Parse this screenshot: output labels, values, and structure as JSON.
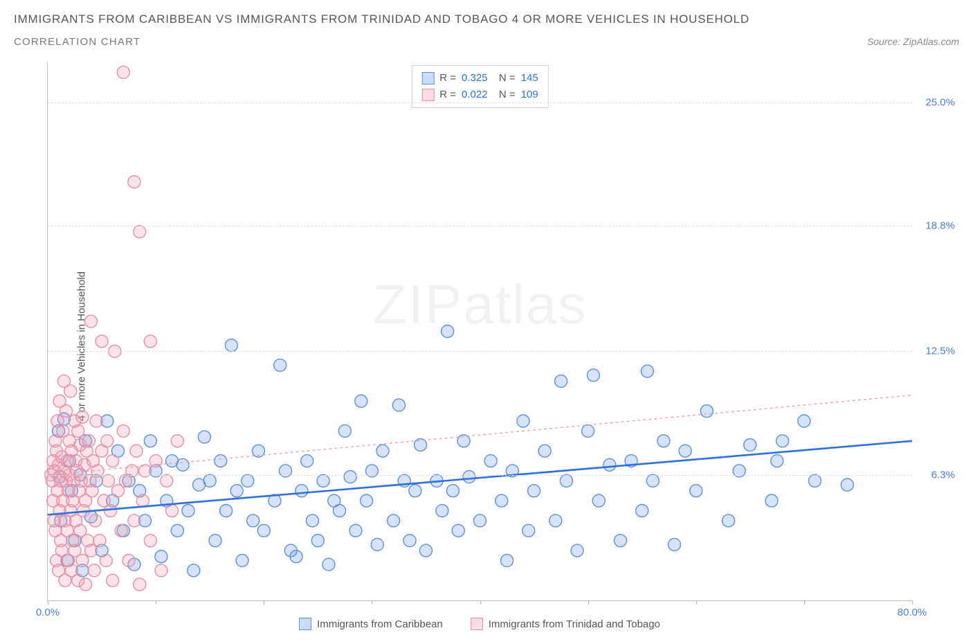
{
  "header": {
    "title": "IMMIGRANTS FROM CARIBBEAN VS IMMIGRANTS FROM TRINIDAD AND TOBAGO 4 OR MORE VEHICLES IN HOUSEHOLD",
    "subtitle": "CORRELATION CHART",
    "source": "Source: ZipAtlas.com"
  },
  "chart": {
    "type": "scatter",
    "ylabel": "4 or more Vehicles in Household",
    "xlim": [
      0,
      80
    ],
    "ylim": [
      0,
      27
    ],
    "xticks": [
      0,
      10,
      20,
      30,
      40,
      50,
      60,
      70,
      80
    ],
    "xlabels_shown": {
      "0": "0.0%",
      "80": "80.0%"
    },
    "yticks": [
      6.3,
      12.5,
      18.8,
      25.0
    ],
    "background_color": "#ffffff",
    "grid_color": "#dddddd",
    "axis_color": "#bbbbbb",
    "tick_label_color": "#4a7fd8",
    "marker_radius": 9,
    "marker_stroke_width": 1.4,
    "marker_fill_opacity": 0.28,
    "watermark": "ZIPatlas",
    "series": [
      {
        "name": "Immigrants from Caribbean",
        "color_fill": "#639cea",
        "color_stroke": "#5a8fd6",
        "R": "0.325",
        "N": "145",
        "trend": {
          "y_at_x0": 4.3,
          "y_at_x80": 8.0,
          "dash": "none",
          "width": 2.6,
          "color": "#2b6fe0"
        },
        "points": [
          [
            1,
            8.5
          ],
          [
            1.1,
            6.2
          ],
          [
            1.2,
            4.0
          ],
          [
            1.5,
            9.1
          ],
          [
            1.8,
            2.0
          ],
          [
            2,
            7.0
          ],
          [
            2.2,
            5.5
          ],
          [
            2.5,
            3.0
          ],
          [
            3,
            6.3
          ],
          [
            3.2,
            1.5
          ],
          [
            3.5,
            8.0
          ],
          [
            4,
            4.2
          ],
          [
            4.5,
            6.0
          ],
          [
            5,
            2.5
          ],
          [
            5.5,
            9.0
          ],
          [
            6,
            5.0
          ],
          [
            6.5,
            7.5
          ],
          [
            7,
            3.5
          ],
          [
            7.5,
            6.0
          ],
          [
            8,
            1.8
          ],
          [
            8.5,
            5.5
          ],
          [
            9,
            4.0
          ],
          [
            9.5,
            8.0
          ],
          [
            10,
            6.5
          ],
          [
            10.5,
            2.2
          ],
          [
            11,
            5.0
          ],
          [
            11.5,
            7.0
          ],
          [
            12,
            3.5
          ],
          [
            12.5,
            6.8
          ],
          [
            13,
            4.5
          ],
          [
            13.5,
            1.5
          ],
          [
            14,
            5.8
          ],
          [
            14.5,
            8.2
          ],
          [
            15,
            6.0
          ],
          [
            15.5,
            3.0
          ],
          [
            16,
            7.0
          ],
          [
            16.5,
            4.5
          ],
          [
            17,
            12.8
          ],
          [
            17.5,
            5.5
          ],
          [
            18,
            2.0
          ],
          [
            18.5,
            6.0
          ],
          [
            19,
            4.0
          ],
          [
            19.5,
            7.5
          ],
          [
            20,
            3.5
          ],
          [
            21,
            5.0
          ],
          [
            21.5,
            11.8
          ],
          [
            22,
            6.5
          ],
          [
            22.5,
            2.5
          ],
          [
            23,
            2.2
          ],
          [
            23.5,
            5.5
          ],
          [
            24,
            7.0
          ],
          [
            24.5,
            4.0
          ],
          [
            25,
            3.0
          ],
          [
            25.5,
            6.0
          ],
          [
            26,
            1.8
          ],
          [
            26.5,
            5.0
          ],
          [
            27,
            4.5
          ],
          [
            27.5,
            8.5
          ],
          [
            28,
            6.2
          ],
          [
            28.5,
            3.5
          ],
          [
            29,
            10.0
          ],
          [
            29.5,
            5.0
          ],
          [
            30,
            6.5
          ],
          [
            30.5,
            2.8
          ],
          [
            31,
            7.5
          ],
          [
            32,
            4.0
          ],
          [
            32.5,
            9.8
          ],
          [
            33,
            6.0
          ],
          [
            33.5,
            3.0
          ],
          [
            34,
            5.5
          ],
          [
            34.5,
            7.8
          ],
          [
            35,
            2.5
          ],
          [
            36,
            6.0
          ],
          [
            36.5,
            4.5
          ],
          [
            37,
            13.5
          ],
          [
            37.5,
            5.5
          ],
          [
            38,
            3.5
          ],
          [
            38.5,
            8.0
          ],
          [
            39,
            6.2
          ],
          [
            40,
            4.0
          ],
          [
            41,
            7.0
          ],
          [
            42,
            5.0
          ],
          [
            42.5,
            2.0
          ],
          [
            43,
            6.5
          ],
          [
            44,
            9.0
          ],
          [
            44.5,
            3.5
          ],
          [
            45,
            5.5
          ],
          [
            46,
            7.5
          ],
          [
            47,
            4.0
          ],
          [
            47.5,
            11.0
          ],
          [
            48,
            6.0
          ],
          [
            49,
            2.5
          ],
          [
            50,
            8.5
          ],
          [
            50.5,
            11.3
          ],
          [
            51,
            5.0
          ],
          [
            52,
            6.8
          ],
          [
            53,
            3.0
          ],
          [
            54,
            7.0
          ],
          [
            55,
            4.5
          ],
          [
            55.5,
            11.5
          ],
          [
            56,
            6.0
          ],
          [
            57,
            8.0
          ],
          [
            58,
            2.8
          ],
          [
            59,
            7.5
          ],
          [
            60,
            5.5
          ],
          [
            61,
            9.5
          ],
          [
            63,
            4.0
          ],
          [
            64,
            6.5
          ],
          [
            65,
            7.8
          ],
          [
            67,
            5.0
          ],
          [
            67.5,
            7.0
          ],
          [
            68,
            8.0
          ],
          [
            70,
            9.0
          ],
          [
            71,
            6.0
          ],
          [
            74,
            5.8
          ]
        ]
      },
      {
        "name": "Immigrants from Trinidad and Tobago",
        "color_fill": "#f49aaf",
        "color_stroke": "#e38fa5",
        "R": "0.022",
        "N": "109",
        "trend": {
          "y_at_x0": 6.3,
          "y_at_x80": 10.3,
          "dash": "4,4",
          "width": 1.3,
          "color": "#e89cae"
        },
        "points": [
          [
            0.3,
            6.3
          ],
          [
            0.4,
            6.0
          ],
          [
            0.5,
            7.0
          ],
          [
            0.5,
            5.0
          ],
          [
            0.6,
            6.5
          ],
          [
            0.6,
            4.0
          ],
          [
            0.7,
            8.0
          ],
          [
            0.7,
            3.5
          ],
          [
            0.8,
            7.5
          ],
          [
            0.8,
            2.0
          ],
          [
            0.9,
            9.0
          ],
          [
            0.9,
            5.5
          ],
          [
            1.0,
            6.8
          ],
          [
            1.0,
            1.5
          ],
          [
            1.1,
            4.5
          ],
          [
            1.1,
            10.0
          ],
          [
            1.2,
            6.0
          ],
          [
            1.2,
            3.0
          ],
          [
            1.3,
            7.2
          ],
          [
            1.3,
            2.5
          ],
          [
            1.4,
            8.5
          ],
          [
            1.4,
            5.0
          ],
          [
            1.5,
            6.5
          ],
          [
            1.5,
            11.0
          ],
          [
            1.6,
            1.0
          ],
          [
            1.6,
            4.0
          ],
          [
            1.7,
            9.5
          ],
          [
            1.7,
            6.0
          ],
          [
            1.8,
            3.5
          ],
          [
            1.8,
            7.0
          ],
          [
            1.9,
            5.5
          ],
          [
            1.9,
            2.0
          ],
          [
            2.0,
            8.0
          ],
          [
            2.0,
            6.3
          ],
          [
            2.1,
            4.5
          ],
          [
            2.1,
            10.5
          ],
          [
            2.2,
            1.5
          ],
          [
            2.2,
            7.5
          ],
          [
            2.3,
            5.0
          ],
          [
            2.3,
            3.0
          ],
          [
            2.4,
            6.0
          ],
          [
            2.5,
            9.0
          ],
          [
            2.5,
            2.5
          ],
          [
            2.6,
            7.0
          ],
          [
            2.6,
            4.0
          ],
          [
            2.7,
            6.5
          ],
          [
            2.8,
            1.0
          ],
          [
            2.8,
            8.5
          ],
          [
            2.9,
            5.5
          ],
          [
            3.0,
            3.5
          ],
          [
            3.0,
            7.8
          ],
          [
            3.1,
            6.0
          ],
          [
            3.2,
            2.0
          ],
          [
            3.2,
            9.2
          ],
          [
            3.3,
            4.5
          ],
          [
            3.4,
            6.8
          ],
          [
            3.5,
            0.8
          ],
          [
            3.5,
            5.0
          ],
          [
            3.6,
            7.5
          ],
          [
            3.7,
            3.0
          ],
          [
            3.8,
            8.0
          ],
          [
            3.9,
            6.0
          ],
          [
            4.0,
            2.5
          ],
          [
            4.0,
            14.0
          ],
          [
            4.1,
            5.5
          ],
          [
            4.2,
            7.0
          ],
          [
            4.3,
            1.5
          ],
          [
            4.4,
            4.0
          ],
          [
            4.5,
            9.0
          ],
          [
            4.6,
            6.5
          ],
          [
            4.8,
            3.0
          ],
          [
            5.0,
            7.5
          ],
          [
            5.0,
            13.0
          ],
          [
            5.2,
            5.0
          ],
          [
            5.4,
            2.0
          ],
          [
            5.5,
            8.0
          ],
          [
            5.6,
            6.0
          ],
          [
            5.8,
            4.5
          ],
          [
            6.0,
            1.0
          ],
          [
            6.0,
            7.0
          ],
          [
            6.2,
            12.5
          ],
          [
            6.5,
            5.5
          ],
          [
            6.8,
            3.5
          ],
          [
            7.0,
            8.5
          ],
          [
            7.0,
            26.5
          ],
          [
            7.2,
            6.0
          ],
          [
            7.5,
            2.0
          ],
          [
            7.8,
            6.5
          ],
          [
            8.0,
            4.0
          ],
          [
            8.0,
            21.0
          ],
          [
            8.2,
            7.5
          ],
          [
            8.5,
            0.8
          ],
          [
            8.5,
            18.5
          ],
          [
            8.8,
            5.0
          ],
          [
            9.0,
            6.5
          ],
          [
            9.5,
            3.0
          ],
          [
            9.5,
            13.0
          ],
          [
            10.0,
            7.0
          ],
          [
            10.5,
            1.5
          ],
          [
            11.0,
            6.0
          ],
          [
            11.5,
            4.5
          ],
          [
            12.0,
            8.0
          ]
        ]
      }
    ],
    "bottom_legend": [
      {
        "swatch": "blue",
        "label": "Immigrants from Caribbean"
      },
      {
        "swatch": "pink",
        "label": "Immigrants from Trinidad and Tobago"
      }
    ]
  }
}
